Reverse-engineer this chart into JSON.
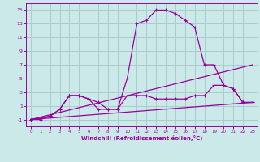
{
  "background_color": "#cce9e9",
  "grid_color": "#aacccc",
  "line_color": "#990099",
  "xlabel": "Windchill (Refroidissement éolien,°C)",
  "xlim": [
    -0.5,
    23.5
  ],
  "ylim": [
    -2.0,
    16.0
  ],
  "xticks": [
    0,
    1,
    2,
    3,
    4,
    5,
    6,
    7,
    8,
    9,
    10,
    11,
    12,
    13,
    14,
    15,
    16,
    17,
    18,
    19,
    20,
    21,
    22,
    23
  ],
  "yticks": [
    -1,
    1,
    3,
    5,
    7,
    9,
    11,
    13,
    15
  ],
  "lines": [
    {
      "x": [
        0,
        1,
        2,
        3,
        4,
        5,
        6,
        7,
        8,
        9,
        10,
        11,
        12,
        13,
        14,
        15,
        16,
        17,
        18,
        19,
        20,
        21,
        22,
        23
      ],
      "y": [
        -1,
        -1,
        -0.5,
        0.5,
        2.5,
        2.5,
        2,
        1.5,
        0.5,
        0.5,
        5,
        13,
        13.5,
        15,
        15,
        14.5,
        13.5,
        12.5,
        7,
        7,
        4,
        3.5,
        1.5,
        1.5
      ],
      "marker": true,
      "lw": 0.9
    },
    {
      "x": [
        0,
        1,
        2,
        3,
        4,
        5,
        6,
        7,
        8,
        9,
        10,
        11,
        12,
        13,
        14,
        15,
        16,
        17,
        18,
        19,
        20,
        21,
        22,
        23
      ],
      "y": [
        -1,
        -0.8,
        -0.5,
        0.5,
        2.5,
        2.5,
        2,
        0.5,
        0.5,
        0.5,
        2.5,
        2.5,
        2.5,
        2,
        2,
        2,
        2,
        2.5,
        2.5,
        4,
        4,
        3.5,
        1.5,
        1.5
      ],
      "marker": true,
      "lw": 0.9
    },
    {
      "x": [
        0,
        23
      ],
      "y": [
        -1,
        7
      ],
      "marker": false,
      "lw": 0.9
    },
    {
      "x": [
        0,
        23
      ],
      "y": [
        -1,
        1.5
      ],
      "marker": false,
      "lw": 0.9
    }
  ]
}
